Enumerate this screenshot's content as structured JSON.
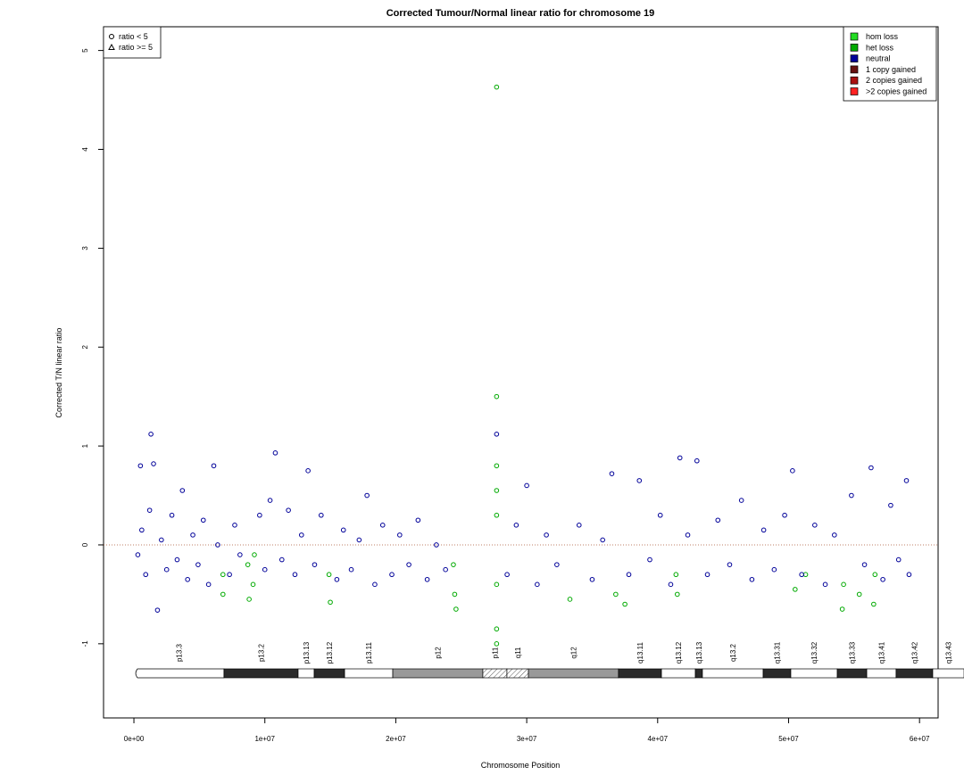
{
  "chart_data": {
    "type": "scatter",
    "title": "Corrected Tumour/Normal linear ratio for chromosome  19",
    "xlabel": "Chromosome Position",
    "ylabel": "Corrected T/N linear ratio",
    "xlim": [
      -2320000,
      61420000
    ],
    "ylim": [
      -1.75,
      5.24
    ],
    "xticks": [
      {
        "value": 0,
        "label": "0e+00"
      },
      {
        "value": 10000000,
        "label": "1e+07"
      },
      {
        "value": 20000000,
        "label": "2e+07"
      },
      {
        "value": 30000000,
        "label": "3e+07"
      },
      {
        "value": 40000000,
        "label": "4e+07"
      },
      {
        "value": 50000000,
        "label": "5e+07"
      },
      {
        "value": 60000000,
        "label": "6e+07"
      }
    ],
    "yticks": [
      -1,
      0,
      1,
      2,
      3,
      4,
      5
    ],
    "hline": 0,
    "shape_legend": [
      "ratio < 5",
      "ratio >= 5"
    ],
    "series": [
      {
        "name": "hom loss",
        "color": "#22dd22",
        "x": [],
        "values": []
      },
      {
        "name": "het loss",
        "color": "#00aa00",
        "x": [
          6800000,
          6800000,
          8700000,
          8800000,
          9100000,
          9200000,
          14900000,
          15000000,
          24400000,
          24500000,
          24600000,
          27700000,
          27700000,
          27700000,
          27700000,
          27700000,
          27700000,
          27700000,
          27700000,
          33300000,
          36800000,
          37500000,
          41400000,
          41500000,
          50500000,
          51300000,
          54100000,
          54200000,
          55400000,
          56500000,
          56600000
        ],
        "values": [
          -0.3,
          -0.5,
          -0.2,
          -0.55,
          -0.4,
          -0.1,
          -0.3,
          -0.58,
          -0.2,
          -0.5,
          -0.65,
          4.63,
          1.5,
          0.8,
          0.3,
          -0.4,
          -0.85,
          -1.0,
          0.55,
          -0.55,
          -0.5,
          -0.6,
          -0.3,
          -0.5,
          -0.45,
          -0.3,
          -0.65,
          -0.4,
          -0.5,
          -0.6,
          -0.3
        ]
      },
      {
        "name": "neutral",
        "color": "#000099",
        "x": [
          300000,
          600000,
          900000,
          1200000,
          1300000,
          1500000,
          500000,
          1800000,
          2100000,
          2500000,
          2900000,
          3300000,
          3700000,
          4100000,
          4500000,
          4900000,
          5300000,
          5700000,
          6100000,
          6400000,
          7300000,
          7700000,
          8100000,
          9600000,
          10000000,
          10400000,
          10800000,
          11300000,
          11800000,
          12300000,
          12800000,
          13300000,
          13800000,
          14300000,
          15500000,
          16000000,
          16600000,
          17200000,
          17800000,
          18400000,
          19000000,
          19700000,
          20300000,
          21000000,
          21700000,
          22400000,
          23100000,
          23800000,
          27700000,
          28500000,
          29200000,
          30000000,
          30800000,
          31500000,
          32300000,
          34000000,
          35000000,
          35800000,
          36500000,
          37800000,
          38600000,
          39400000,
          40200000,
          41000000,
          41700000,
          42300000,
          43000000,
          43800000,
          44600000,
          45500000,
          46400000,
          47200000,
          48100000,
          48900000,
          49700000,
          50300000,
          51000000,
          52000000,
          52800000,
          53500000,
          54800000,
          55800000,
          56300000,
          57200000,
          57800000,
          58400000,
          59000000,
          59200000
        ],
        "values": [
          -0.1,
          0.15,
          -0.3,
          0.35,
          1.12,
          0.82,
          0.8,
          -0.66,
          0.05,
          -0.25,
          0.3,
          -0.15,
          0.55,
          -0.35,
          0.1,
          -0.2,
          0.25,
          -0.4,
          0.8,
          0.0,
          -0.3,
          0.2,
          -0.1,
          0.3,
          -0.25,
          0.45,
          0.93,
          -0.15,
          0.35,
          -0.3,
          0.1,
          0.75,
          -0.2,
          0.3,
          -0.35,
          0.15,
          -0.25,
          0.05,
          0.5,
          -0.4,
          0.2,
          -0.3,
          0.1,
          -0.2,
          0.25,
          -0.35,
          0.0,
          -0.25,
          1.12,
          -0.3,
          0.2,
          0.6,
          -0.4,
          0.1,
          -0.2,
          0.2,
          -0.35,
          0.05,
          0.72,
          -0.3,
          0.65,
          -0.15,
          0.3,
          -0.4,
          0.88,
          0.1,
          0.85,
          -0.3,
          0.25,
          -0.2,
          0.45,
          -0.35,
          0.15,
          -0.25,
          0.3,
          0.75,
          -0.3,
          0.2,
          -0.4,
          0.1,
          0.5,
          -0.2,
          0.78,
          -0.35,
          0.4,
          -0.15,
          0.65,
          -0.3
        ]
      },
      {
        "name": "1 copy gained",
        "color": "#661111",
        "x": [],
        "values": []
      },
      {
        "name": "2 copies gained",
        "color": "#aa1111",
        "x": [],
        "values": []
      },
      {
        "name": ">2 copies gained",
        "color": "#ff2222",
        "x": [],
        "values": []
      }
    ],
    "ideogram": [
      {
        "name": "p13.3",
        "start": 0,
        "end": 6880000,
        "stain": "gneg"
      },
      {
        "name": "p13.2",
        "start": 6880000,
        "end": 12540000,
        "stain": "gpos"
      },
      {
        "name": "p13.13",
        "start": 12540000,
        "end": 13770000,
        "stain": "gneg"
      },
      {
        "name": "p13.12",
        "start": 13770000,
        "end": 16090000,
        "stain": "gpos"
      },
      {
        "name": "p13.11",
        "start": 16090000,
        "end": 19770000,
        "stain": "gneg"
      },
      {
        "name": "p12",
        "start": 19770000,
        "end": 26650000,
        "stain": "gvar"
      },
      {
        "name": "p11",
        "start": 26650000,
        "end": 28490000,
        "stain": "acen"
      },
      {
        "name": "q11",
        "start": 28490000,
        "end": 30130000,
        "stain": "acen"
      },
      {
        "name": "q12",
        "start": 30130000,
        "end": 37010000,
        "stain": "gvar"
      },
      {
        "name": "q13.11",
        "start": 37010000,
        "end": 40290000,
        "stain": "gpos"
      },
      {
        "name": "q13.12",
        "start": 40290000,
        "end": 42880000,
        "stain": "gneg"
      },
      {
        "name": "q13.13",
        "start": 42880000,
        "end": 43420000,
        "stain": "gpos"
      },
      {
        "name": "q13.2",
        "start": 43420000,
        "end": 48060000,
        "stain": "gneg"
      },
      {
        "name": "q13.31",
        "start": 48060000,
        "end": 50170000,
        "stain": "gpos"
      },
      {
        "name": "q13.32",
        "start": 50170000,
        "end": 53720000,
        "stain": "gneg"
      },
      {
        "name": "q13.33",
        "start": 53720000,
        "end": 55970000,
        "stain": "gpos"
      },
      {
        "name": "q13.41",
        "start": 55970000,
        "end": 58210000,
        "stain": "gneg"
      },
      {
        "name": "q13.42",
        "start": 58210000,
        "end": 61010000,
        "stain": "gpos"
      },
      {
        "name": "q13.43",
        "start": 61010000,
        "end": 63400000,
        "stain": "gneg"
      }
    ]
  }
}
